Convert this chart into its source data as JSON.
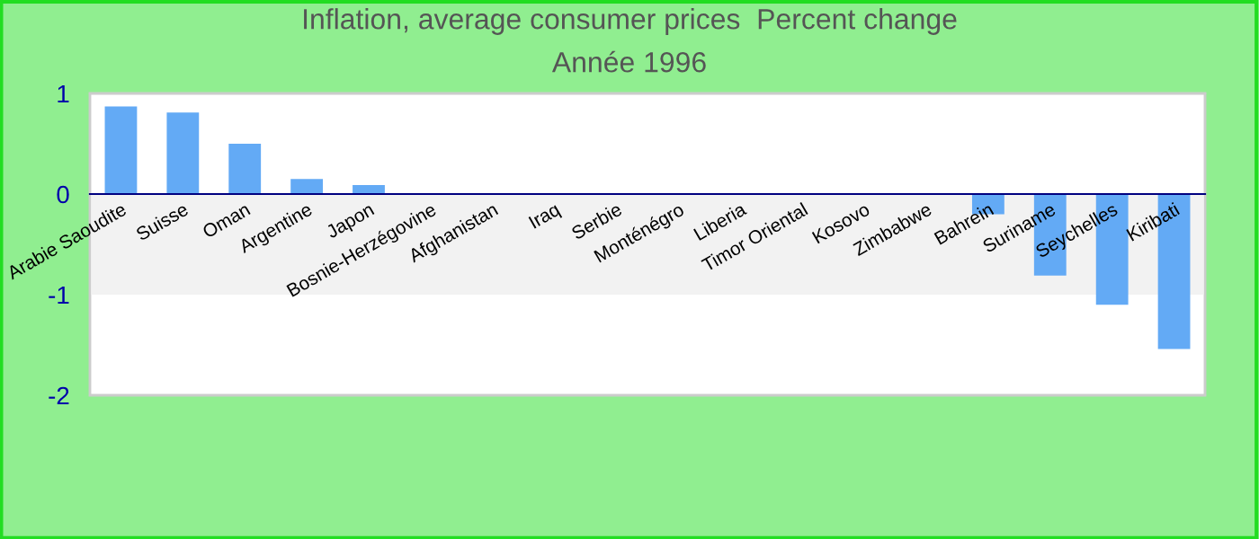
{
  "chart_data": {
    "type": "bar",
    "title": "Inflation, average consumer prices  Percent change",
    "subtitle": "Année 1996",
    "categories": [
      "Arabie Saoudite",
      "Suisse",
      "Oman",
      "Argentine",
      "Japon",
      "Bosnie-Herzégovine",
      "Afghanistan",
      "Iraq",
      "Serbie",
      "Monténégro",
      "Liberia",
      "Timor Oriental",
      "Kosovo",
      "Zimbabwe",
      "Bahrein",
      "Suriname",
      "Seychelles",
      "Kiribati"
    ],
    "values": [
      0.87,
      0.81,
      0.5,
      0.15,
      0.09,
      null,
      null,
      null,
      null,
      null,
      null,
      null,
      null,
      null,
      -0.2,
      -0.81,
      -1.1,
      -1.54
    ],
    "color": "#63aaf5",
    "ylim": [
      -2,
      1
    ],
    "yticks": [
      -2,
      -1,
      0,
      1
    ],
    "bands": [
      {
        "axis": "y",
        "from": -1,
        "to": 0,
        "color": "#f2f2f2"
      }
    ],
    "grid": false,
    "legend": false
  }
}
